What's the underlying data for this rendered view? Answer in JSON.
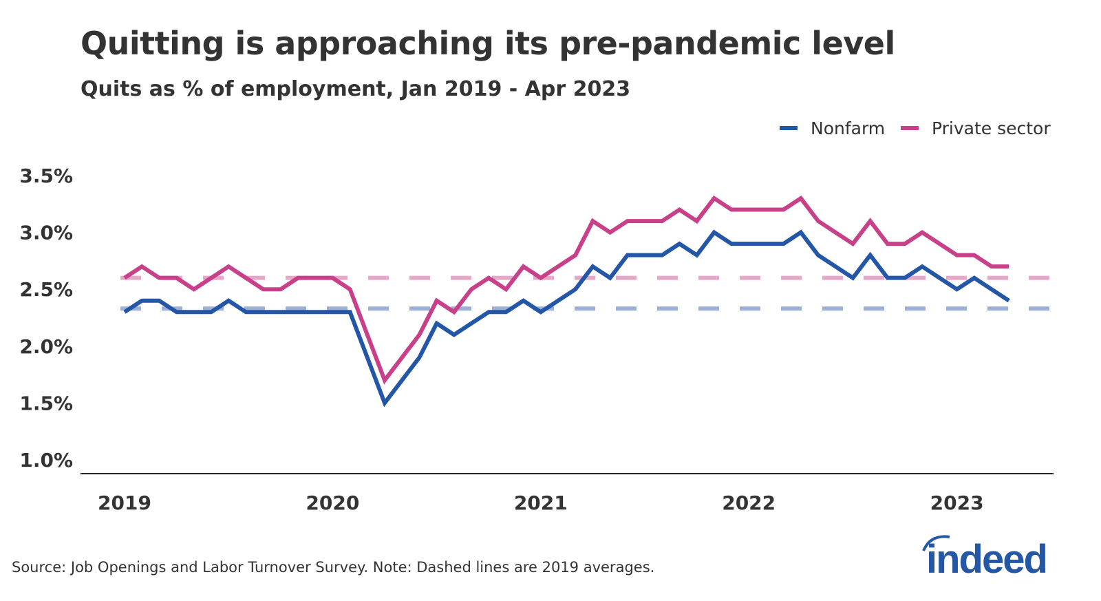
{
  "chart_data": {
    "type": "line",
    "title": "Quitting is approaching its pre-pandemic level",
    "subtitle": "Quits as % of employment, Jan 2019 - Apr 2023",
    "xlabel": "",
    "ylabel": "",
    "ylim": [
      1.0,
      3.5
    ],
    "y_ticks": [
      "3.5%",
      "3.0%",
      "2.5%",
      "2.0%",
      "1.5%",
      "1.0%"
    ],
    "y_tick_values": [
      3.5,
      3.0,
      2.5,
      2.0,
      1.5,
      1.0
    ],
    "x_ticks": [
      "2019",
      "2020",
      "2021",
      "2022",
      "2023"
    ],
    "x_start": "2019-01",
    "x_end": "2023-04",
    "frequency": "monthly",
    "grid": false,
    "legend_placement": "top-right",
    "series": [
      {
        "name": "Nonfarm",
        "color": "#2356a6",
        "values": [
          2.3,
          2.4,
          2.4,
          2.3,
          2.3,
          2.3,
          2.4,
          2.3,
          2.3,
          2.3,
          2.3,
          2.3,
          2.3,
          2.3,
          1.9,
          1.5,
          1.7,
          1.9,
          2.2,
          2.1,
          2.2,
          2.3,
          2.3,
          2.4,
          2.3,
          2.4,
          2.5,
          2.7,
          2.6,
          2.8,
          2.8,
          2.8,
          2.9,
          2.8,
          3.0,
          2.9,
          2.9,
          2.9,
          2.9,
          3.0,
          2.8,
          2.7,
          2.6,
          2.8,
          2.6,
          2.6,
          2.7,
          2.6,
          2.5,
          2.6,
          2.5,
          2.4
        ],
        "average_2019": 2.33,
        "average_color": "#9cb0d6"
      },
      {
        "name": "Private sector",
        "color": "#c9408a",
        "values": [
          2.6,
          2.7,
          2.6,
          2.6,
          2.5,
          2.6,
          2.7,
          2.6,
          2.5,
          2.5,
          2.6,
          2.6,
          2.6,
          2.5,
          2.1,
          1.7,
          1.9,
          2.1,
          2.4,
          2.3,
          2.5,
          2.6,
          2.5,
          2.7,
          2.6,
          2.7,
          2.8,
          3.1,
          3.0,
          3.1,
          3.1,
          3.1,
          3.2,
          3.1,
          3.3,
          3.2,
          3.2,
          3.2,
          3.2,
          3.3,
          3.1,
          3.0,
          2.9,
          3.1,
          2.9,
          2.9,
          3.0,
          2.9,
          2.8,
          2.8,
          2.7,
          2.7
        ],
        "average_2019": 2.6,
        "average_color": "#e6a8c8"
      }
    ]
  },
  "footer": {
    "source": "Source: Job Openings and Labor Turnover Survey. Note: Dashed lines are 2019 averages.",
    "logo_text": "indeed",
    "logo_color": "#2557a7"
  }
}
